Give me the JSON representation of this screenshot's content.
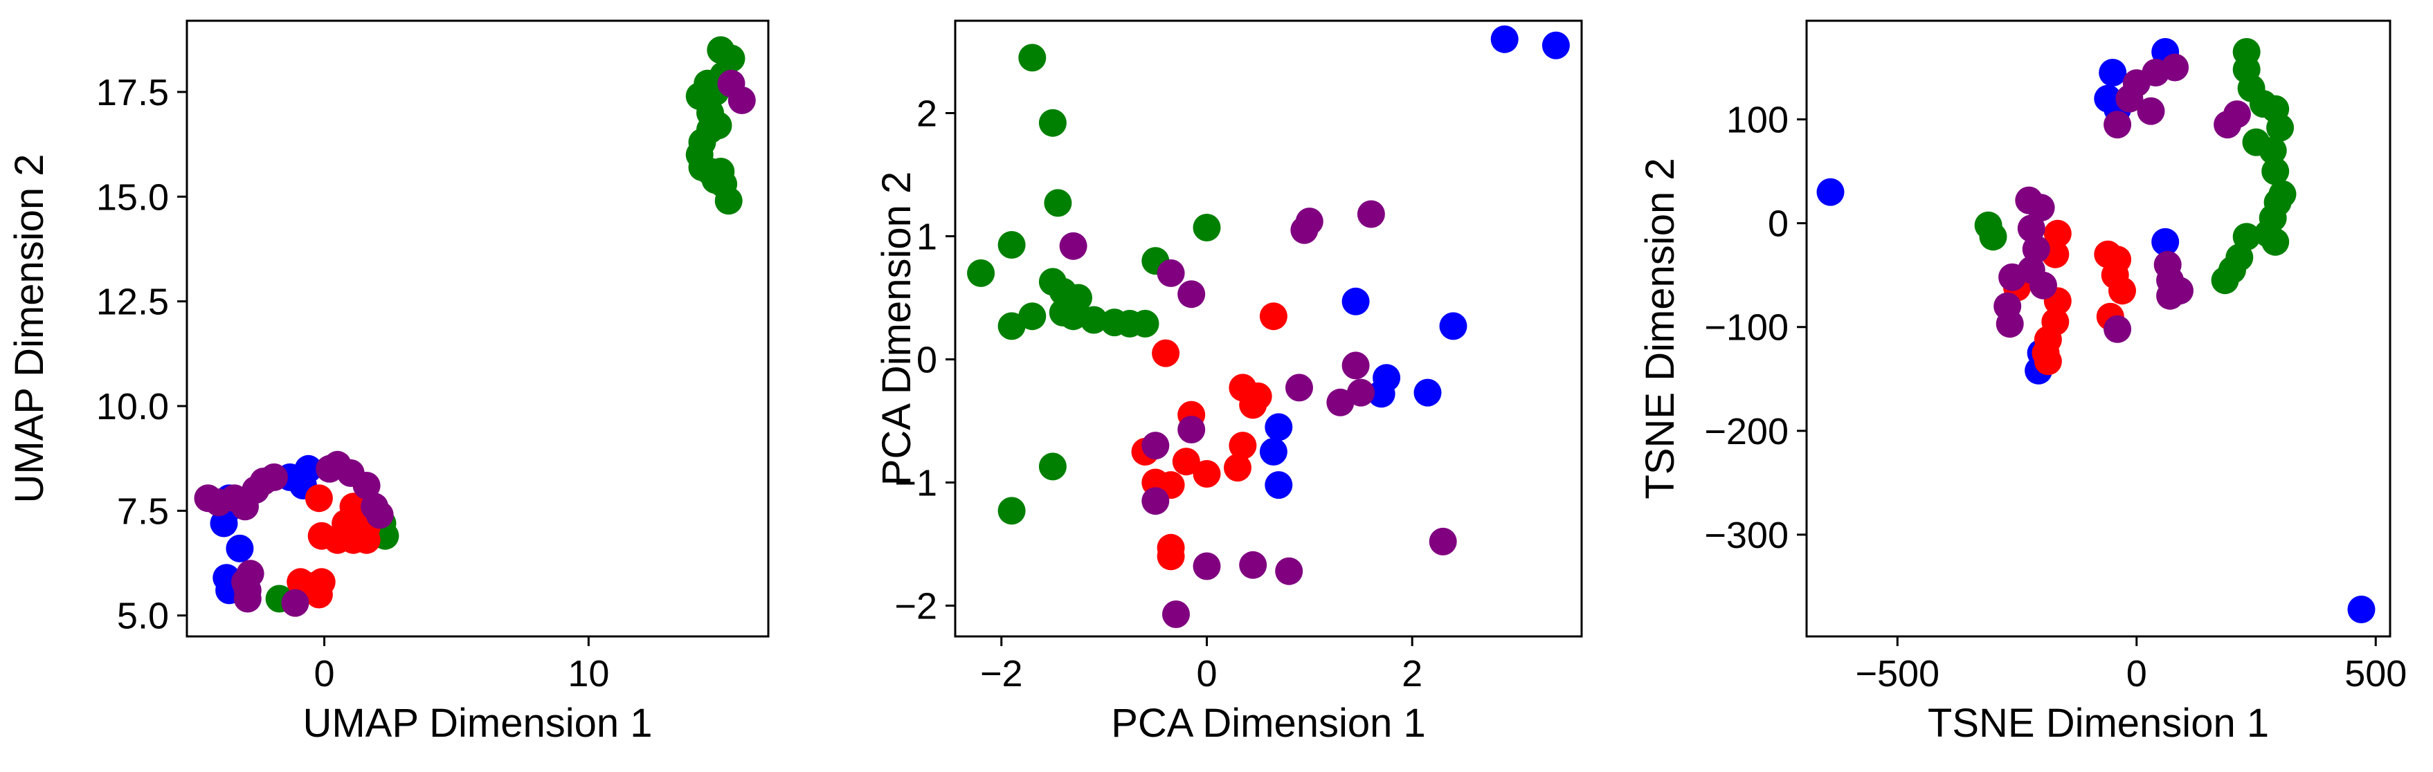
{
  "chart_data": [
    {
      "type": "scatter",
      "title": "",
      "xlabel": "UMAP Dimension 1",
      "ylabel": "UMAP Dimension 2",
      "xlim": [
        -5.2,
        16.8
      ],
      "ylim": [
        4.5,
        19.2
      ],
      "xticks": [
        0,
        10
      ],
      "xtick_labels": [
        "0",
        "10"
      ],
      "yticks": [
        5.0,
        7.5,
        10.0,
        12.5,
        15.0,
        17.5
      ],
      "ytick_labels": [
        "5.0",
        "7.5",
        "10.0",
        "12.5",
        "15.0",
        "17.5"
      ],
      "grid": false,
      "legend": "none",
      "series": [
        {
          "color": "#008000",
          "points": [
            [
              14.2,
              17.4
            ],
            [
              14.5,
              17.7
            ],
            [
              14.8,
              17.5
            ],
            [
              15.0,
              18.5
            ],
            [
              15.4,
              18.3
            ],
            [
              15.1,
              17.9
            ],
            [
              14.6,
              17.0
            ],
            [
              14.3,
              16.3
            ],
            [
              14.6,
              16.6
            ],
            [
              14.9,
              16.7
            ],
            [
              14.3,
              15.7
            ],
            [
              14.6,
              15.6
            ],
            [
              14.8,
              15.4
            ],
            [
              15.1,
              15.3
            ],
            [
              15.3,
              14.9
            ],
            [
              14.2,
              16.0
            ],
            [
              15.0,
              15.6
            ],
            [
              2.2,
              7.2
            ],
            [
              2.3,
              6.9
            ],
            [
              -1.7,
              5.4
            ]
          ]
        },
        {
          "color": "#0000ff",
          "points": [
            [
              -3.6,
              7.8
            ],
            [
              -3.7,
              7.5
            ],
            [
              -3.8,
              7.2
            ],
            [
              -3.2,
              6.6
            ],
            [
              -3.7,
              5.9
            ],
            [
              -3.6,
              5.6
            ],
            [
              -1.3,
              8.3
            ],
            [
              -0.6,
              8.5
            ],
            [
              -0.8,
              8.1
            ]
          ]
        },
        {
          "color": "#ff0000",
          "points": [
            [
              -0.2,
              7.8
            ],
            [
              1.1,
              7.6
            ],
            [
              1.3,
              7.3
            ],
            [
              0.8,
              7.2
            ],
            [
              1.6,
              7.1
            ],
            [
              -0.1,
              6.9
            ],
            [
              0.5,
              6.8
            ],
            [
              1.1,
              6.8
            ],
            [
              1.6,
              6.8
            ],
            [
              -0.9,
              5.8
            ],
            [
              -0.5,
              5.7
            ],
            [
              -0.1,
              5.8
            ],
            [
              -0.2,
              5.5
            ]
          ]
        },
        {
          "color": "#800080",
          "points": [
            [
              -4.4,
              7.8
            ],
            [
              -4.0,
              7.7
            ],
            [
              -3.4,
              7.8
            ],
            [
              -3.0,
              7.6
            ],
            [
              -2.6,
              8.0
            ],
            [
              -2.3,
              8.2
            ],
            [
              -1.9,
              8.3
            ],
            [
              0.2,
              8.5
            ],
            [
              0.5,
              8.6
            ],
            [
              1.0,
              8.4
            ],
            [
              1.6,
              8.1
            ],
            [
              1.9,
              7.6
            ],
            [
              2.1,
              7.4
            ],
            [
              -3.0,
              5.8
            ],
            [
              -2.8,
              6.0
            ],
            [
              -2.9,
              5.6
            ],
            [
              -2.9,
              5.4
            ],
            [
              -1.1,
              5.3
            ],
            [
              15.4,
              17.7
            ],
            [
              15.8,
              17.3
            ]
          ]
        }
      ]
    },
    {
      "type": "scatter",
      "title": "",
      "xlabel": "PCA Dimension 1",
      "ylabel": "PCA Dimension 2",
      "xlim": [
        -2.45,
        3.65
      ],
      "ylim": [
        -2.25,
        2.75
      ],
      "xticks": [
        -2,
        0,
        2
      ],
      "xtick_labels": [
        "−2",
        "0",
        "2"
      ],
      "yticks": [
        -2,
        -1,
        0,
        1,
        2
      ],
      "ytick_labels": [
        "−2",
        "−1",
        "0",
        "1",
        "2"
      ],
      "grid": false,
      "legend": "none",
      "series": [
        {
          "color": "#008000",
          "points": [
            [
              -1.7,
              2.45
            ],
            [
              -1.5,
              1.92
            ],
            [
              -1.45,
              1.27
            ],
            [
              -1.9,
              0.93
            ],
            [
              -2.2,
              0.7
            ],
            [
              -0.5,
              0.8
            ],
            [
              0.0,
              1.07
            ],
            [
              -1.5,
              0.63
            ],
            [
              -1.4,
              0.55
            ],
            [
              -1.25,
              0.5
            ],
            [
              -1.7,
              0.35
            ],
            [
              -1.9,
              0.27
            ],
            [
              -1.4,
              0.38
            ],
            [
              -1.3,
              0.35
            ],
            [
              -1.1,
              0.32
            ],
            [
              -0.9,
              0.3
            ],
            [
              -0.75,
              0.29
            ],
            [
              -0.6,
              0.29
            ],
            [
              -1.5,
              -0.87
            ],
            [
              -1.9,
              -1.23
            ]
          ]
        },
        {
          "color": "#0000ff",
          "points": [
            [
              2.9,
              2.6
            ],
            [
              3.4,
              2.55
            ],
            [
              1.45,
              0.47
            ],
            [
              2.4,
              0.27
            ],
            [
              1.75,
              -0.15
            ],
            [
              1.7,
              -0.28
            ],
            [
              2.15,
              -0.27
            ],
            [
              0.7,
              -0.55
            ],
            [
              0.65,
              -0.75
            ],
            [
              0.7,
              -1.02
            ]
          ]
        },
        {
          "color": "#ff0000",
          "points": [
            [
              0.65,
              0.35
            ],
            [
              -0.4,
              0.05
            ],
            [
              0.35,
              -0.23
            ],
            [
              0.5,
              -0.3
            ],
            [
              0.45,
              -0.37
            ],
            [
              -0.15,
              -0.45
            ],
            [
              0.35,
              -0.7
            ],
            [
              -0.6,
              -0.75
            ],
            [
              -0.2,
              -0.83
            ],
            [
              0.3,
              -0.88
            ],
            [
              0.0,
              -0.93
            ],
            [
              -0.5,
              -1.0
            ],
            [
              -0.35,
              -1.02
            ],
            [
              -0.35,
              -1.53
            ],
            [
              -0.35,
              -1.6
            ]
          ]
        },
        {
          "color": "#800080",
          "points": [
            [
              -1.3,
              0.92
            ],
            [
              -0.35,
              0.7
            ],
            [
              -0.15,
              0.53
            ],
            [
              1.0,
              1.12
            ],
            [
              0.95,
              1.05
            ],
            [
              1.6,
              1.18
            ],
            [
              0.9,
              -0.23
            ],
            [
              1.45,
              -0.05
            ],
            [
              1.3,
              -0.35
            ],
            [
              1.5,
              -0.27
            ],
            [
              -0.5,
              -0.7
            ],
            [
              -0.15,
              -0.57
            ],
            [
              -0.5,
              -1.15
            ],
            [
              0.0,
              -1.68
            ],
            [
              0.45,
              -1.67
            ],
            [
              0.8,
              -1.72
            ],
            [
              2.3,
              -1.48
            ],
            [
              -0.3,
              -2.07
            ]
          ]
        }
      ]
    },
    {
      "type": "scatter",
      "title": "",
      "xlabel": "TSNE Dimension 1",
      "ylabel": "TSNE Dimension 2",
      "xlim": [
        -690,
        530
      ],
      "ylim": [
        -398,
        195
      ],
      "xticks": [
        -500,
        0,
        500
      ],
      "xtick_labels": [
        "−500",
        "0",
        "500"
      ],
      "yticks": [
        -300,
        -200,
        -100,
        0,
        100
      ],
      "ytick_labels": [
        "−300",
        "−200",
        "−100",
        "0",
        "100"
      ],
      "grid": false,
      "legend": "none",
      "series": [
        {
          "color": "#008000",
          "points": [
            [
              230,
              165
            ],
            [
              230,
              148
            ],
            [
              240,
              130
            ],
            [
              265,
              115
            ],
            [
              290,
              110
            ],
            [
              300,
              92
            ],
            [
              250,
              78
            ],
            [
              285,
              70
            ],
            [
              290,
              50
            ],
            [
              295,
              20
            ],
            [
              305,
              28
            ],
            [
              285,
              5
            ],
            [
              290,
              -18
            ],
            [
              275,
              -10
            ],
            [
              230,
              -13
            ],
            [
              215,
              -33
            ],
            [
              200,
              -45
            ],
            [
              185,
              -55
            ],
            [
              -310,
              -2
            ],
            [
              -300,
              -13
            ]
          ]
        },
        {
          "color": "#0000ff",
          "points": [
            [
              60,
              165
            ],
            [
              -50,
              145
            ],
            [
              -60,
              120
            ],
            [
              -40,
              110
            ],
            [
              60,
              -18
            ],
            [
              -640,
              30
            ],
            [
              -200,
              -125
            ],
            [
              -205,
              -142
            ],
            [
              470,
              -372
            ]
          ]
        },
        {
          "color": "#ff0000",
          "points": [
            [
              -165,
              -10
            ],
            [
              -170,
              -30
            ],
            [
              -60,
              -30
            ],
            [
              -40,
              -35
            ],
            [
              -45,
              -50
            ],
            [
              -30,
              -65
            ],
            [
              -250,
              -62
            ],
            [
              -165,
              -75
            ],
            [
              -170,
              -95
            ],
            [
              -55,
              -90
            ],
            [
              -185,
              -112
            ],
            [
              -190,
              -125
            ],
            [
              -185,
              -133
            ]
          ]
        },
        {
          "color": "#800080",
          "points": [
            [
              80,
              150
            ],
            [
              40,
              145
            ],
            [
              0,
              135
            ],
            [
              -15,
              120
            ],
            [
              30,
              108
            ],
            [
              190,
              95
            ],
            [
              210,
              105
            ],
            [
              -40,
              95
            ],
            [
              -225,
              22
            ],
            [
              -200,
              15
            ],
            [
              -220,
              -5
            ],
            [
              -210,
              -25
            ],
            [
              -260,
              -52
            ],
            [
              -220,
              -45
            ],
            [
              -195,
              -60
            ],
            [
              65,
              -40
            ],
            [
              70,
              -55
            ],
            [
              90,
              -65
            ],
            [
              70,
              -70
            ],
            [
              -270,
              -80
            ],
            [
              -265,
              -97
            ],
            [
              -40,
              -102
            ]
          ]
        }
      ]
    }
  ]
}
